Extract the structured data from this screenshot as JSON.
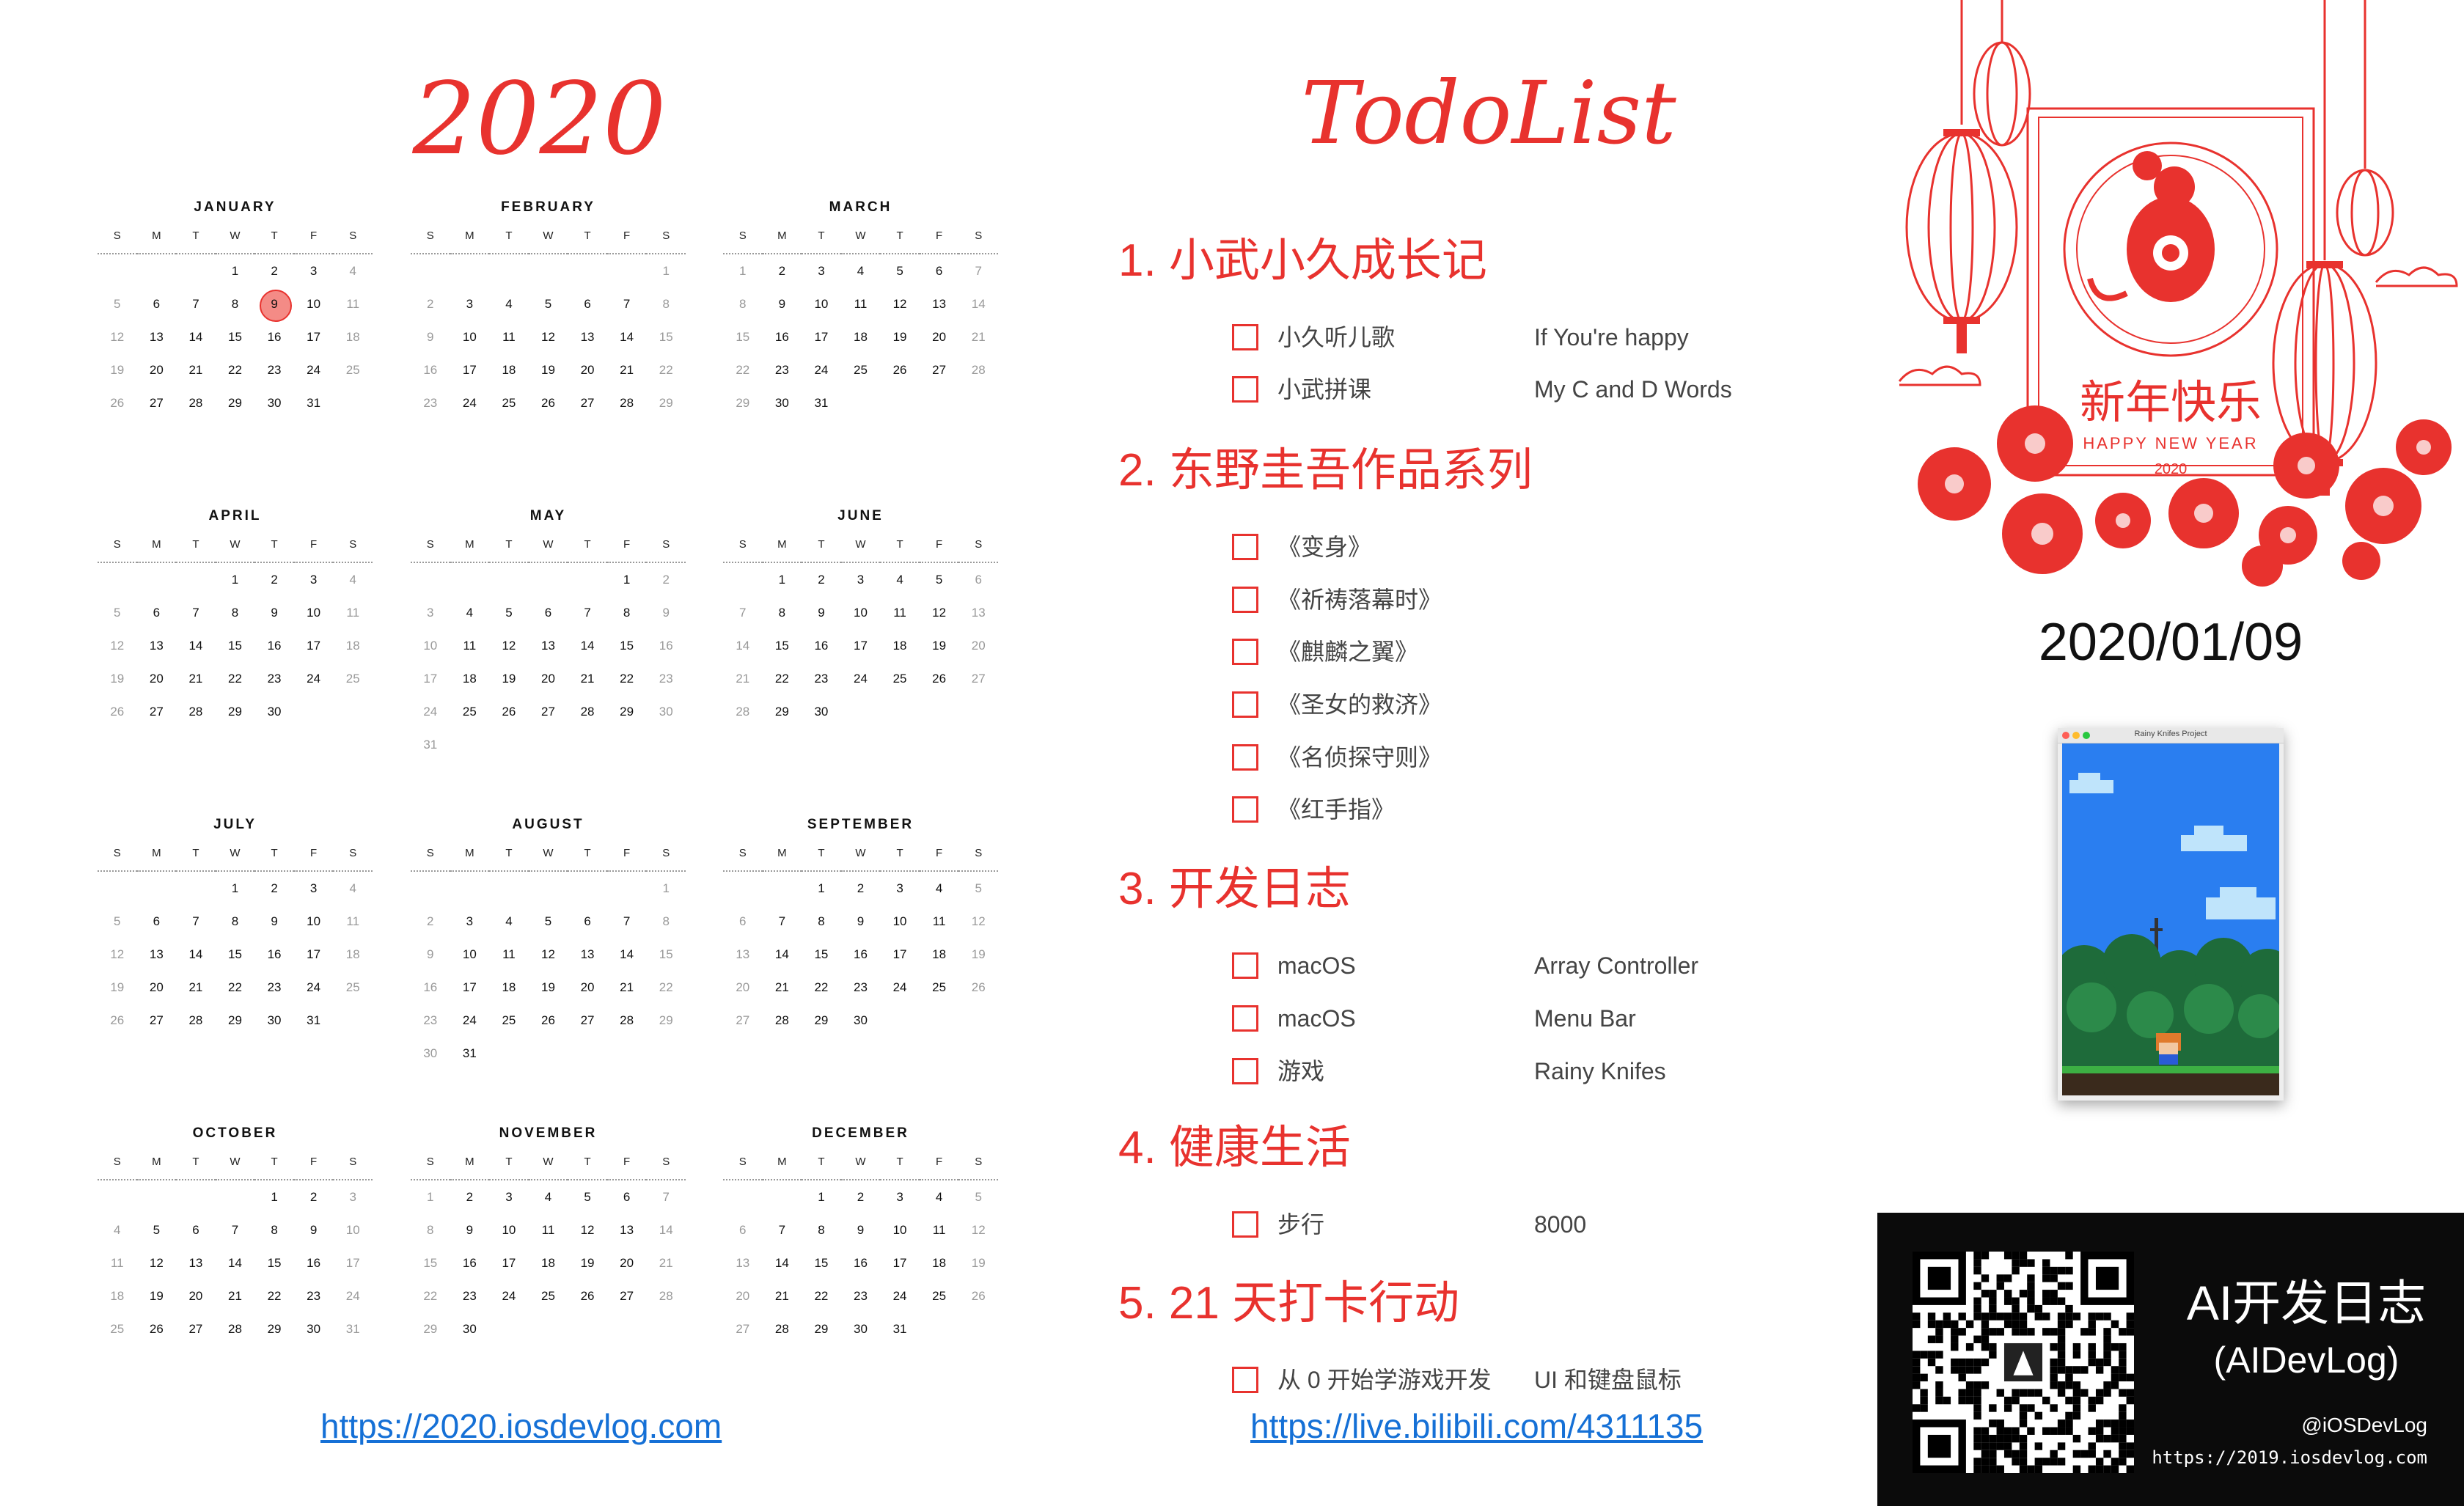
{
  "calendar": {
    "year": "2020",
    "weekday_labels": [
      "S",
      "M",
      "T",
      "W",
      "T",
      "F",
      "S"
    ],
    "today": {
      "month": 0,
      "day": 9
    },
    "months": [
      {
        "name": "JANUARY",
        "start": 3,
        "days": 31
      },
      {
        "name": "FEBRUARY",
        "start": 6,
        "days": 29
      },
      {
        "name": "MARCH",
        "start": 0,
        "days": 31
      },
      {
        "name": "APRIL",
        "start": 3,
        "days": 30
      },
      {
        "name": "MAY",
        "start": 5,
        "days": 31
      },
      {
        "name": "JUNE",
        "start": 1,
        "days": 30
      },
      {
        "name": "JULY",
        "start": 3,
        "days": 31
      },
      {
        "name": "AUGUST",
        "start": 6,
        "days": 31
      },
      {
        "name": "SEPTEMBER",
        "start": 2,
        "days": 30
      },
      {
        "name": "OCTOBER",
        "start": 4,
        "days": 31
      },
      {
        "name": "NOVEMBER",
        "start": 0,
        "days": 30
      },
      {
        "name": "DECEMBER",
        "start": 2,
        "days": 31
      }
    ],
    "link": "https://2020.iosdevlog.com"
  },
  "todo": {
    "title": "TodoList",
    "sections": [
      {
        "title": "1. 小武小久成长记",
        "items": [
          {
            "name": "小久听儿歌",
            "detail": "If You're happy"
          },
          {
            "name": "小武拼课",
            "detail": "My C and D Words"
          }
        ]
      },
      {
        "title": "2. 东野圭吾作品系列",
        "items": [
          {
            "name": "《变身》",
            "detail": ""
          },
          {
            "name": "《祈祷落幕时》",
            "detail": ""
          },
          {
            "name": "《麒麟之翼》",
            "detail": ""
          },
          {
            "name": "《圣女的救济》",
            "detail": ""
          },
          {
            "name": "《名侦探守则》",
            "detail": ""
          },
          {
            "name": "《红手指》",
            "detail": ""
          }
        ]
      },
      {
        "title": "3. 开发日志",
        "items": [
          {
            "name": "macOS",
            "detail": "Array Controller"
          },
          {
            "name": "macOS",
            "detail": "Menu Bar"
          },
          {
            "name": "游戏",
            "detail": "Rainy Knifes"
          }
        ]
      },
      {
        "title": "4. 健康生活",
        "items": [
          {
            "name": "步行",
            "detail": "8000"
          }
        ]
      },
      {
        "title": "5. 21 天打卡行动",
        "items": [
          {
            "name": "从 0 开始学游戏开发",
            "detail": "UI 和键盘鼠标"
          }
        ]
      }
    ],
    "link": "https://live.bilibili.com/4311135"
  },
  "newyear": {
    "title_cn": "新年快乐",
    "title_en": "HAPPY NEW YEAR",
    "year": "2020"
  },
  "date": "2020/01/09",
  "game_window": {
    "title": "Rainy Knifes Project"
  },
  "banner": {
    "title_cn": "AI开发日志",
    "title_en": "(AIDevLog)",
    "handle": "@iOSDevLog",
    "site": "https://2019.iosdevlog.com"
  },
  "colors": {
    "accent": "#e8322e",
    "link": "#1570d6",
    "banner_bg": "#0b0b0b"
  }
}
